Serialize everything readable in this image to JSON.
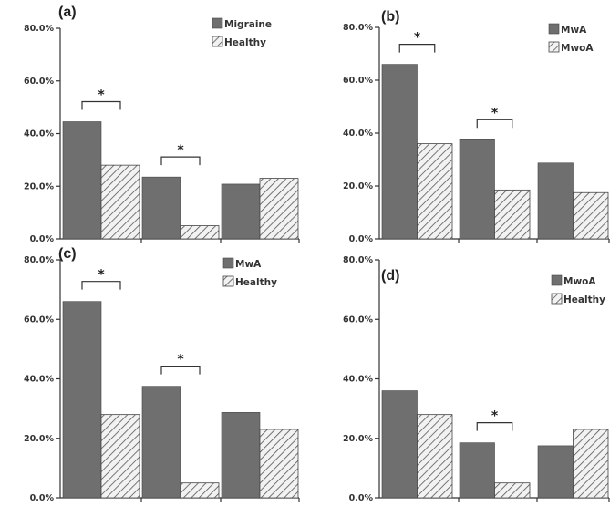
{
  "colors": {
    "solid_bar": "#6f6f6f",
    "hatch_line": "#555555",
    "hatch_bg": "#f2f2f2",
    "axis": "#333333"
  },
  "chart_data": [
    {
      "type": "bar",
      "panel_label": "(a)",
      "categories": [
        "",
        "",
        ""
      ],
      "series": [
        {
          "name": "Migraine",
          "style": "solid",
          "values": [
            44.5,
            23.5,
            20.8
          ]
        },
        {
          "name": "Healthy",
          "style": "hatched",
          "values": [
            28.0,
            5.0,
            23.0
          ]
        }
      ],
      "significance": [
        "*",
        "*",
        ""
      ],
      "ylim": [
        0,
        80
      ],
      "yticks": [
        "0.0%",
        "20.0%",
        "40.0%",
        "60.0%",
        "80.0%"
      ],
      "legend_position": "top-right"
    },
    {
      "type": "bar",
      "panel_label": "(b)",
      "categories": [
        "",
        "",
        ""
      ],
      "series": [
        {
          "name": "MwA",
          "style": "solid",
          "values": [
            66.0,
            37.5,
            28.7
          ]
        },
        {
          "name": "MwoA",
          "style": "hatched",
          "values": [
            36.0,
            18.5,
            17.5
          ]
        }
      ],
      "significance": [
        "*",
        "*",
        ""
      ],
      "ylim": [
        0,
        80
      ],
      "yticks": [
        "0.0%",
        "20.0%",
        "40.0%",
        "60.0%",
        "80.0%"
      ],
      "legend_position": "top-right"
    },
    {
      "type": "bar",
      "panel_label": "(c)",
      "categories": [
        "",
        "",
        ""
      ],
      "series": [
        {
          "name": "MwA",
          "style": "solid",
          "values": [
            66.0,
            37.5,
            28.7
          ]
        },
        {
          "name": "Healthy",
          "style": "hatched",
          "values": [
            28.0,
            5.0,
            23.0
          ]
        }
      ],
      "significance": [
        "*",
        "*",
        ""
      ],
      "ylim": [
        0,
        80
      ],
      "yticks": [
        "0.0%",
        "20.0%",
        "40.0%",
        "60.0%",
        "80.0%"
      ],
      "legend_position": "top-right"
    },
    {
      "type": "bar",
      "panel_label": "(d)",
      "categories": [
        "",
        "",
        ""
      ],
      "series": [
        {
          "name": "MwoA",
          "style": "solid",
          "values": [
            36.0,
            18.5,
            17.5
          ]
        },
        {
          "name": "Healthy",
          "style": "hatched",
          "values": [
            28.0,
            5.0,
            23.0
          ]
        }
      ],
      "significance": [
        "",
        "*",
        ""
      ],
      "ylim": [
        0,
        80
      ],
      "yticks": [
        "0.0%",
        "20.0%",
        "40.0%",
        "60.0%",
        "80.0%"
      ],
      "legend_position": "top-right"
    }
  ]
}
